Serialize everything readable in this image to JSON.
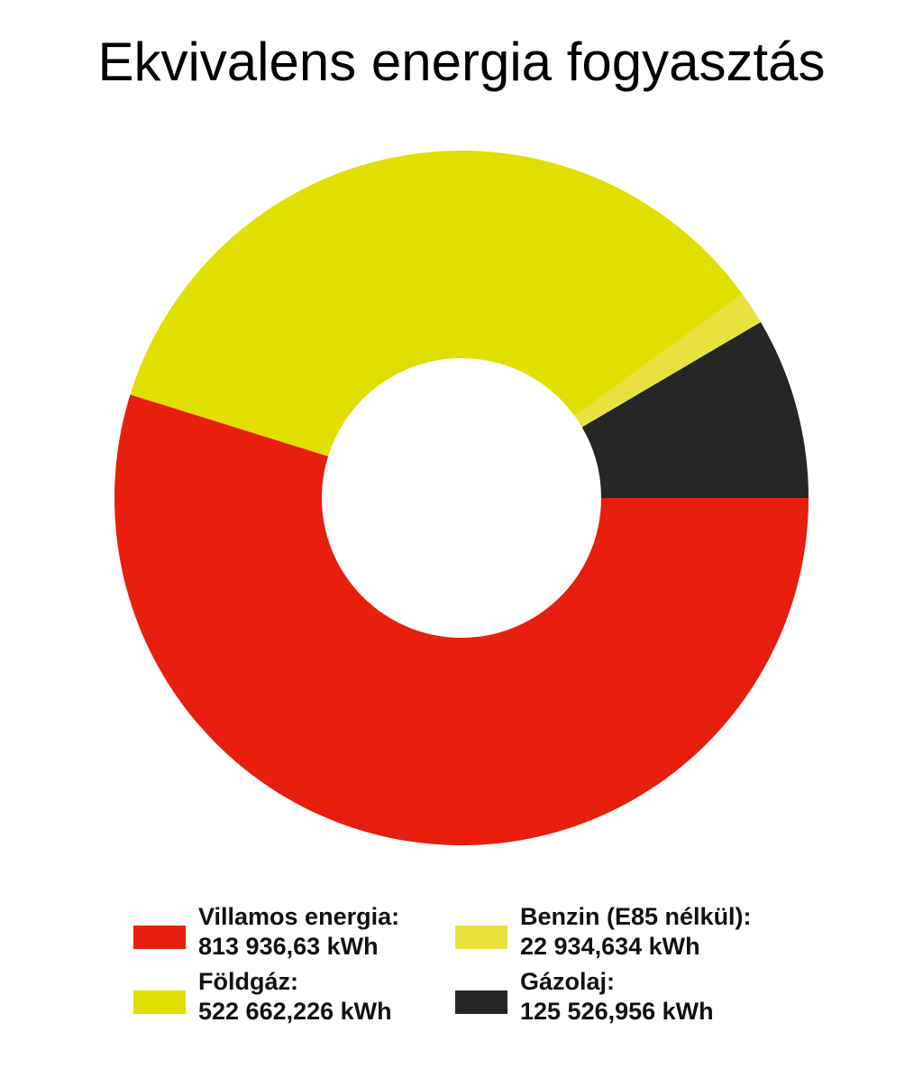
{
  "chart_data": {
    "type": "pie",
    "title": "Ekvivalens energia fogyasztás",
    "unit": "kWh",
    "donut": true,
    "legend_placement": "bottom",
    "series": [
      {
        "name": "Villamos energia:",
        "value": 813936.63,
        "value_label": "813 936,63 kWh",
        "color": "#e81e0e"
      },
      {
        "name": "Földgáz:",
        "value": 522662.226,
        "value_label": "522 662,226 kWh",
        "color": "#e0df00"
      },
      {
        "name": "Benzin (E85 nélkül):",
        "value": 22934.634,
        "value_label": "22 934,634 kWh",
        "color": "#e8e23f"
      },
      {
        "name": "Gázolaj:",
        "value": 125526.956,
        "value_label": "125 526,956 kWh",
        "color": "#262626"
      }
    ]
  }
}
